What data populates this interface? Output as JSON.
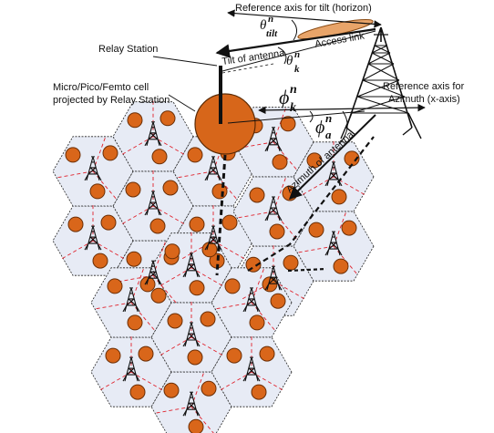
{
  "labels": {
    "ref_tilt": "Reference axis for tilt (horizon)",
    "tilt_antenna": "Tilt  of antenna",
    "access_link": "Access link",
    "relay_station": "Relay Station",
    "cell_line1": "Micro/Pico/Femto cell",
    "cell_line2": "projected by Relay Station",
    "ref_azimuth_line1": "Reference axis for",
    "ref_azimuth_line2": "Azimuth (x-axis)",
    "azimuth_antenna": "Azimuth of antenna"
  },
  "symbols": {
    "theta": "θ",
    "phi": "ϕ",
    "sup_n": "n",
    "sub_tilt": "tilt",
    "sub_k": "k",
    "sub_a": "a"
  },
  "colors": {
    "cell_fill": "#e7ebf5",
    "cell_stroke": "#222222",
    "sector_line": "#e0202a",
    "user_fill": "#d9661a",
    "user_stroke": "#6b2e05",
    "relay_fill": "#d7661a",
    "tower": "#111111"
  }
}
